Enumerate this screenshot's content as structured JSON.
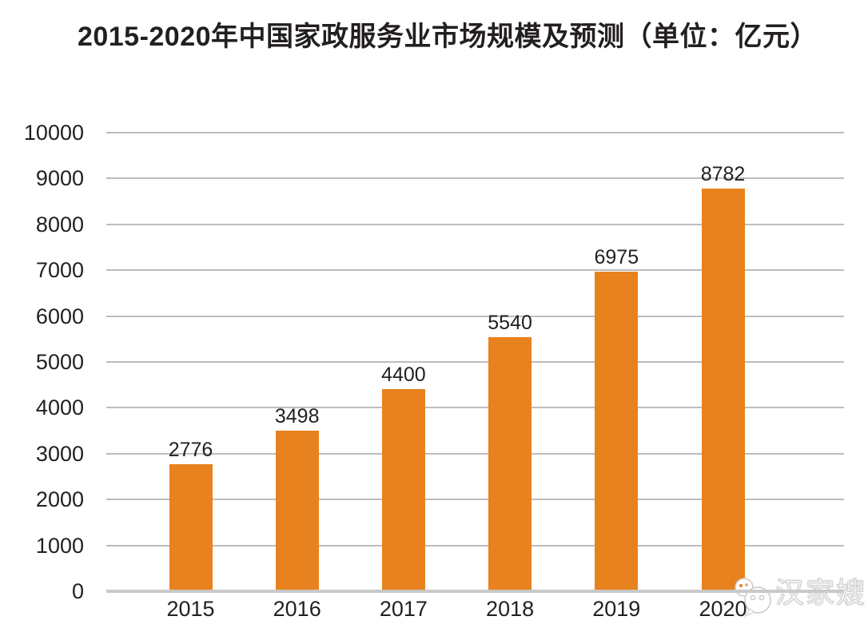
{
  "chart_data": {
    "type": "bar",
    "title": "2015-2020年中国家政服务业市场规模及预测（单位：亿元）",
    "unit": "亿元",
    "categories": [
      "2015",
      "2016",
      "2017",
      "2018",
      "2019",
      "2020"
    ],
    "values": [
      2776,
      3498,
      4400,
      5540,
      6975,
      8782
    ],
    "xlabel": "",
    "ylabel": "",
    "ylim": [
      0,
      10000
    ],
    "ytick_step": 1000,
    "yticks": [
      0,
      1000,
      2000,
      3000,
      4000,
      5000,
      6000,
      7000,
      8000,
      9000,
      10000
    ],
    "grid": true,
    "legend": "none",
    "bar_color": "#E8821E",
    "gridline_color": "#bdbdbd",
    "axis_color": "#c9c9c9",
    "text_color": "#231f20"
  },
  "watermark": {
    "text": "汉家嫂",
    "icon": "wechat-icon",
    "icon_color": "#ffffff",
    "outline_color": "#cfcfcf"
  }
}
